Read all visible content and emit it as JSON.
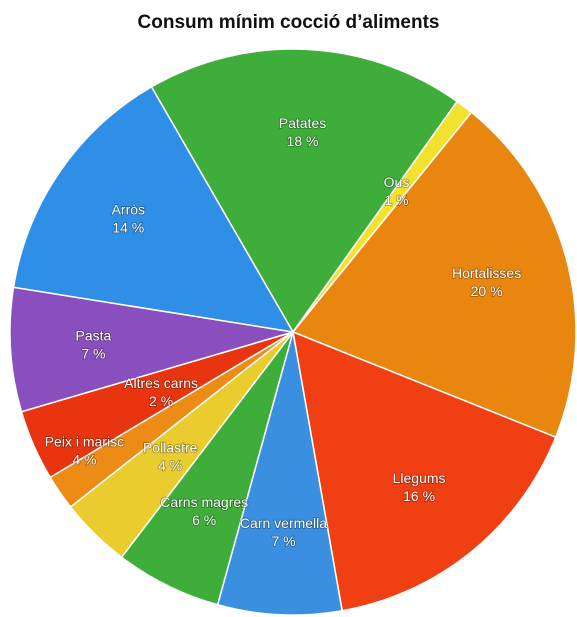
{
  "chart_data": {
    "type": "pie",
    "title": "Consum mínim cocció d’aliments",
    "slices": [
      {
        "name": "Patates",
        "value": 18,
        "value_label": "18 %",
        "color": "#3fad3a"
      },
      {
        "name": "Ous",
        "value": 1,
        "value_label": "1 %",
        "color": "#f2e22e"
      },
      {
        "name": "Hortalisses",
        "value": 20,
        "value_label": "20 %",
        "color": "#e8860f"
      },
      {
        "name": "Llegums",
        "value": 16,
        "value_label": "16 %",
        "color": "#ef3f13"
      },
      {
        "name": "Carn vermella",
        "value": 7,
        "value_label": "7 %",
        "color": "#3a8fe0"
      },
      {
        "name": "Carns magres",
        "value": 6,
        "value_label": "6 %",
        "color": "#3fad3a"
      },
      {
        "name": "Pollastre",
        "value": 4,
        "value_label": "4 %",
        "color": "#ebcc2e"
      },
      {
        "name": "Altres carns",
        "value": 2,
        "value_label": "2 %",
        "color": "#ec8b16"
      },
      {
        "name": "Peix i marisc",
        "value": 4,
        "value_label": "4 %",
        "color": "#e8350f"
      },
      {
        "name": "Pasta",
        "value": 7,
        "value_label": "7 %",
        "color": "#8a4fbf"
      },
      {
        "name": "Arròs",
        "value": 14,
        "value_label": "14 %",
        "color": "#2f8ee6"
      }
    ]
  }
}
